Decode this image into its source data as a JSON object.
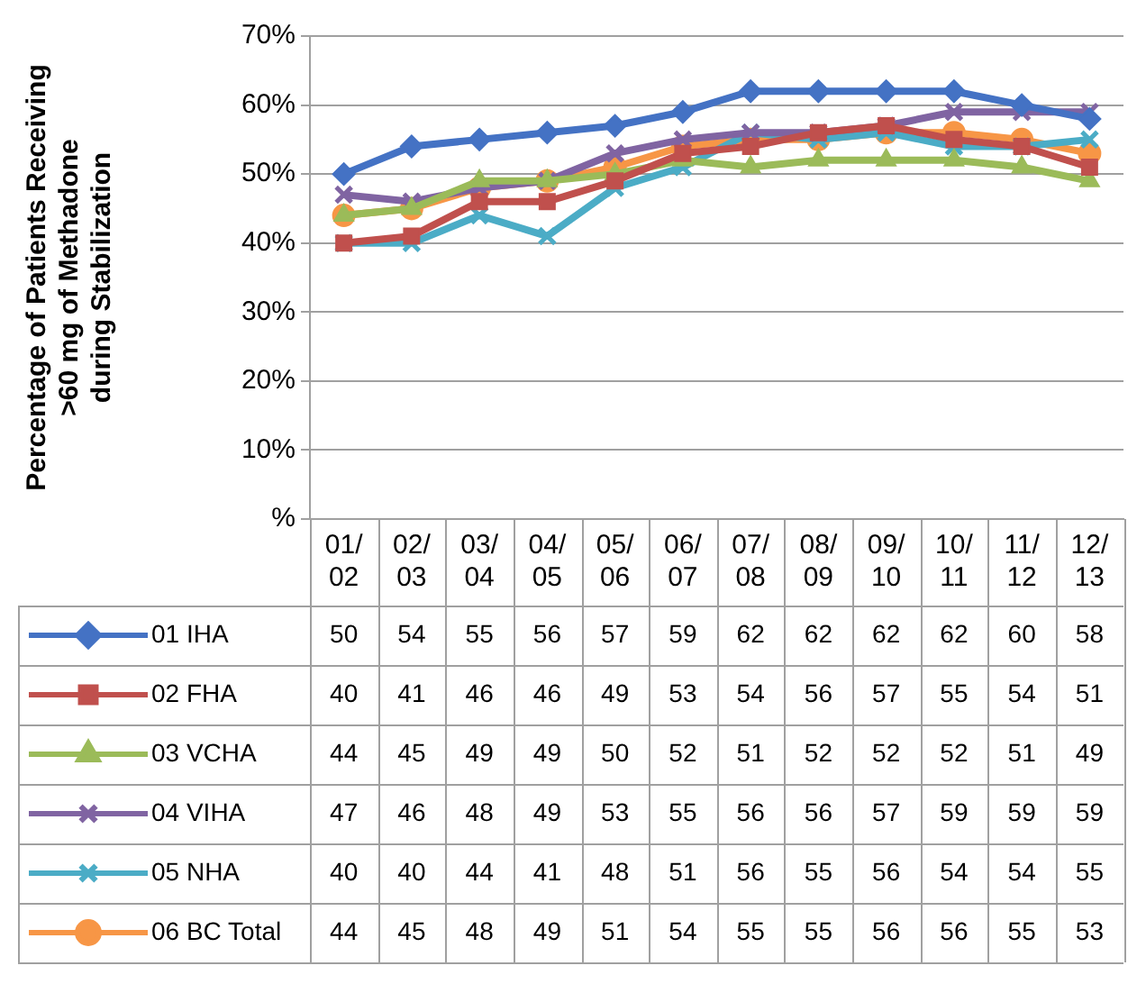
{
  "chart_data": {
    "type": "line",
    "ylabel": "Percentage of Patients Receiving\n>60 mg of Methadone\nduring Stabilization",
    "categories": [
      "01/02",
      "02/03",
      "03/04",
      "04/05",
      "05/06",
      "06/07",
      "07/08",
      "08/09",
      "09/10",
      "10/11",
      "11/12",
      "12/13"
    ],
    "series": [
      {
        "name": "01 IHA",
        "color": "#4472c4",
        "marker": "diamond",
        "values": [
          50,
          54,
          55,
          56,
          57,
          59,
          62,
          62,
          62,
          62,
          60,
          58
        ]
      },
      {
        "name": "02 FHA",
        "color": "#c0504d",
        "marker": "square",
        "values": [
          40,
          41,
          46,
          46,
          49,
          53,
          54,
          56,
          57,
          55,
          54,
          51
        ]
      },
      {
        "name": "03 VCHA",
        "color": "#9bbb59",
        "marker": "triangle",
        "values": [
          44,
          45,
          49,
          49,
          50,
          52,
          51,
          52,
          52,
          52,
          51,
          49
        ]
      },
      {
        "name": "04 VIHA",
        "color": "#8064a2",
        "marker": "cross",
        "values": [
          47,
          46,
          48,
          49,
          53,
          55,
          56,
          56,
          57,
          59,
          59,
          59
        ]
      },
      {
        "name": "05 NHA",
        "color": "#4bacc6",
        "marker": "cross",
        "values": [
          40,
          40,
          44,
          41,
          48,
          51,
          56,
          55,
          56,
          54,
          54,
          55
        ]
      },
      {
        "name": "06 BC Total",
        "color": "#f79646",
        "marker": "circle",
        "values": [
          44,
          45,
          48,
          49,
          51,
          54,
          55,
          55,
          56,
          56,
          55,
          53
        ]
      }
    ],
    "ylim": [
      0,
      70
    ],
    "yticks": [
      {
        "value": 0,
        "label": "%"
      },
      {
        "value": 10,
        "label": "10%"
      },
      {
        "value": 20,
        "label": "20%"
      },
      {
        "value": 30,
        "label": "30%"
      },
      {
        "value": 40,
        "label": "40%"
      },
      {
        "value": 50,
        "label": "50%"
      },
      {
        "value": 60,
        "label": "60%"
      },
      {
        "value": 70,
        "label": "70%"
      }
    ],
    "grid": "y",
    "legend": "bottom",
    "data_labels": true,
    "line_style": "solid"
  }
}
